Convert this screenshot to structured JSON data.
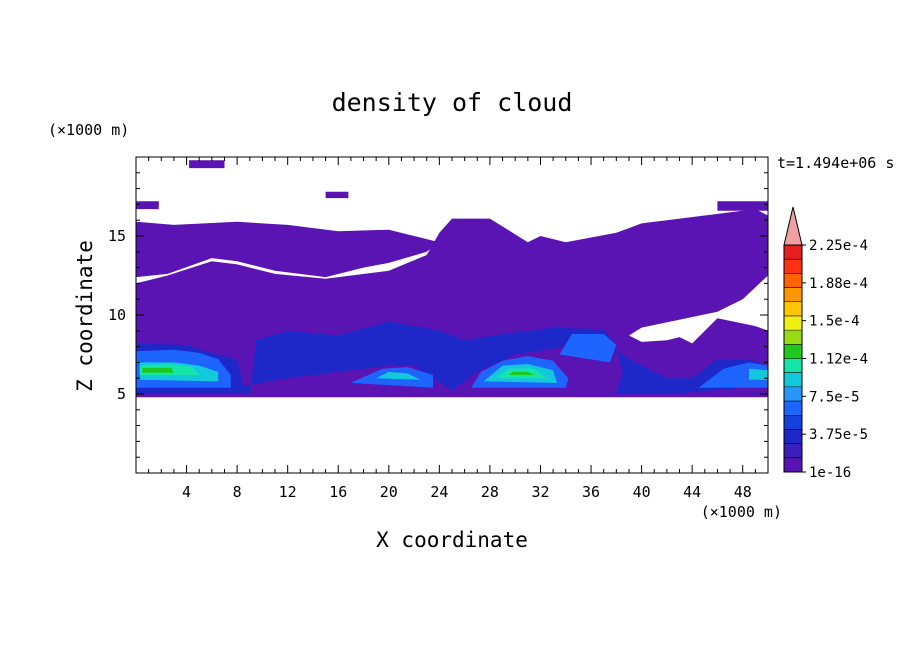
{
  "chart_data": {
    "type": "heatmap",
    "title": "density of cloud",
    "xlabel": "X coordinate",
    "ylabel": "Z coordinate",
    "x_unit": "(×1000 m)",
    "y_unit": "(×1000 m)",
    "time_label": "t=1.494e+06 s",
    "xlim": [
      0,
      50
    ],
    "ylim": [
      0,
      20
    ],
    "x_ticks": [
      4,
      8,
      12,
      16,
      20,
      24,
      28,
      32,
      36,
      40,
      44,
      48
    ],
    "y_ticks": [
      5,
      10,
      15
    ],
    "colorbar": {
      "labels": [
        "1e-16",
        "3.75e-5",
        "7.5e-5",
        "1.12e-4",
        "1.5e-4",
        "1.88e-4",
        "2.25e-4"
      ],
      "colors": [
        "#5a14b4",
        "#3c1eb9",
        "#1e28c8",
        "#1440dc",
        "#1e64ff",
        "#2896ff",
        "#14c8dc",
        "#14e6aa",
        "#1ec81e",
        "#96dc14",
        "#f0f014",
        "#ffc800",
        "#ff9600",
        "#ff6400",
        "#ff3214",
        "#e61e1e"
      ],
      "extend_color": "#f0a0a0"
    },
    "regions": [
      {
        "level": 0,
        "pts": [
          [
            0,
            4.8
          ],
          [
            50,
            4.8
          ],
          [
            50,
            9
          ],
          [
            49,
            9.3
          ],
          [
            46,
            9.8
          ],
          [
            44,
            8.2
          ],
          [
            43,
            8.6
          ],
          [
            42,
            8.4
          ],
          [
            40,
            8.3
          ],
          [
            39,
            8.7
          ],
          [
            40,
            9.2
          ],
          [
            46,
            10.2
          ],
          [
            48,
            11
          ],
          [
            50,
            12.5
          ],
          [
            50,
            16.3
          ],
          [
            49,
            16.7
          ],
          [
            45,
            16.3
          ],
          [
            40,
            15.8
          ],
          [
            38,
            15.2
          ],
          [
            34,
            14.6
          ],
          [
            32,
            15
          ],
          [
            31,
            14.6
          ],
          [
            29,
            15.6
          ],
          [
            28,
            16.1
          ],
          [
            25,
            16.1
          ],
          [
            24,
            15.2
          ],
          [
            23,
            13.8
          ],
          [
            20,
            12.8
          ],
          [
            15,
            12.3
          ],
          [
            11,
            12.6
          ],
          [
            8,
            13.2
          ],
          [
            6,
            13.4
          ],
          [
            2.5,
            12.5
          ],
          [
            0,
            12
          ]
        ]
      },
      {
        "level": 0,
        "pts": [
          [
            0,
            12.4
          ],
          [
            2.5,
            12.6
          ],
          [
            6,
            13.6
          ],
          [
            8,
            13.4
          ],
          [
            11,
            12.8
          ],
          [
            15,
            12.4
          ],
          [
            18,
            13
          ],
          [
            20,
            13.3
          ],
          [
            23,
            14
          ],
          [
            24,
            14.6
          ],
          [
            20,
            15.4
          ],
          [
            16,
            15.3
          ],
          [
            12,
            15.7
          ],
          [
            8,
            15.9
          ],
          [
            3,
            15.7
          ],
          [
            0,
            15.9
          ]
        ]
      },
      {
        "level": 0,
        "pts": [
          [
            0,
            16.7
          ],
          [
            1.8,
            16.7
          ],
          [
            1.8,
            17.2
          ],
          [
            0,
            17.2
          ]
        ]
      },
      {
        "level": 0,
        "pts": [
          [
            4.2,
            19.3
          ],
          [
            7,
            19.3
          ],
          [
            7,
            19.8
          ],
          [
            4.2,
            19.8
          ]
        ]
      },
      {
        "level": 0,
        "pts": [
          [
            15,
            17.4
          ],
          [
            16.8,
            17.4
          ],
          [
            16.8,
            17.8
          ],
          [
            15,
            17.8
          ]
        ]
      },
      {
        "level": 0,
        "pts": [
          [
            46,
            16.6
          ],
          [
            50,
            16.6
          ],
          [
            50,
            17.2
          ],
          [
            46,
            17.2
          ]
        ]
      },
      {
        "level": 2,
        "pts": [
          [
            0,
            5
          ],
          [
            9,
            5
          ],
          [
            9.5,
            8.4
          ],
          [
            12,
            9
          ],
          [
            16,
            8.7
          ],
          [
            20,
            9.6
          ],
          [
            24,
            9
          ],
          [
            26,
            8.4
          ],
          [
            29,
            8.8
          ],
          [
            33,
            9.2
          ],
          [
            37,
            9.1
          ],
          [
            38,
            8
          ],
          [
            38.5,
            6.3
          ],
          [
            38,
            5
          ],
          [
            42,
            5
          ],
          [
            47,
            5.3
          ],
          [
            50,
            5.8
          ],
          [
            50,
            6.8
          ],
          [
            48.5,
            7.2
          ],
          [
            46,
            7.2
          ],
          [
            44,
            6
          ],
          [
            42,
            6
          ],
          [
            39,
            7.2
          ],
          [
            37.5,
            8.1
          ],
          [
            34,
            8
          ],
          [
            30,
            7.5
          ],
          [
            27,
            6.4
          ],
          [
            25,
            5.2
          ],
          [
            22,
            6.8
          ],
          [
            20,
            6.8
          ],
          [
            16,
            6.4
          ],
          [
            12,
            6
          ],
          [
            8.5,
            5.5
          ],
          [
            8,
            7.2
          ],
          [
            6,
            7.6
          ],
          [
            4,
            8.1
          ],
          [
            0,
            8.2
          ]
        ]
      },
      {
        "level": 4,
        "pts": [
          [
            0,
            5.4
          ],
          [
            7.5,
            5.4
          ],
          [
            7.5,
            6.2
          ],
          [
            6.5,
            7.2
          ],
          [
            5,
            7.6
          ],
          [
            3,
            7.8
          ],
          [
            0,
            7.7
          ]
        ]
      },
      {
        "level": 4,
        "pts": [
          [
            26.5,
            5.4
          ],
          [
            34,
            5.4
          ],
          [
            34.2,
            6
          ],
          [
            33,
            7.1
          ],
          [
            31,
            7.4
          ],
          [
            29,
            7.1
          ],
          [
            27.3,
            6.4
          ]
        ]
      },
      {
        "level": 4,
        "pts": [
          [
            17,
            5.7
          ],
          [
            23.5,
            5.4
          ],
          [
            23.5,
            6.2
          ],
          [
            21.5,
            6.7
          ],
          [
            19.5,
            6.6
          ]
        ]
      },
      {
        "level": 4,
        "pts": [
          [
            33.5,
            7.5
          ],
          [
            37.5,
            7
          ],
          [
            38,
            8.1
          ],
          [
            37,
            8.8
          ],
          [
            34.5,
            8.8
          ]
        ]
      },
      {
        "level": 4,
        "pts": [
          [
            44.5,
            5.4
          ],
          [
            50,
            5.4
          ],
          [
            50,
            6.8
          ],
          [
            48.5,
            7
          ],
          [
            46.5,
            6.6
          ]
        ]
      },
      {
        "level": 6,
        "pts": [
          [
            0.3,
            5.9
          ],
          [
            6.5,
            5.8
          ],
          [
            6.5,
            6.4
          ],
          [
            5,
            6.8
          ],
          [
            3,
            7
          ],
          [
            0.3,
            7
          ]
        ]
      },
      {
        "level": 6,
        "pts": [
          [
            27.5,
            5.8
          ],
          [
            33.3,
            5.7
          ],
          [
            33,
            6.5
          ],
          [
            31,
            6.9
          ],
          [
            29,
            6.8
          ]
        ]
      },
      {
        "level": 6,
        "pts": [
          [
            19,
            6
          ],
          [
            22.5,
            5.9
          ],
          [
            21.5,
            6.3
          ],
          [
            20,
            6.4
          ]
        ]
      },
      {
        "level": 6,
        "pts": [
          [
            48.5,
            5.9
          ],
          [
            50,
            5.9
          ],
          [
            50,
            6.5
          ],
          [
            48.5,
            6.6
          ]
        ]
      },
      {
        "level": 7,
        "pts": [
          [
            0.3,
            6.2
          ],
          [
            5,
            6.2
          ],
          [
            4.5,
            6.7
          ],
          [
            2.5,
            6.9
          ],
          [
            0.3,
            6.8
          ]
        ]
      },
      {
        "level": 7,
        "pts": [
          [
            28.5,
            6
          ],
          [
            32.5,
            6
          ],
          [
            31.5,
            6.6
          ],
          [
            29.5,
            6.6
          ]
        ]
      },
      {
        "level": 8,
        "pts": [
          [
            0.5,
            6.35
          ],
          [
            3,
            6.35
          ],
          [
            2.8,
            6.65
          ],
          [
            0.5,
            6.65
          ]
        ]
      },
      {
        "level": 8,
        "pts": [
          [
            29.5,
            6.2
          ],
          [
            31.5,
            6.2
          ],
          [
            31,
            6.4
          ],
          [
            29.8,
            6.4
          ]
        ]
      }
    ]
  }
}
